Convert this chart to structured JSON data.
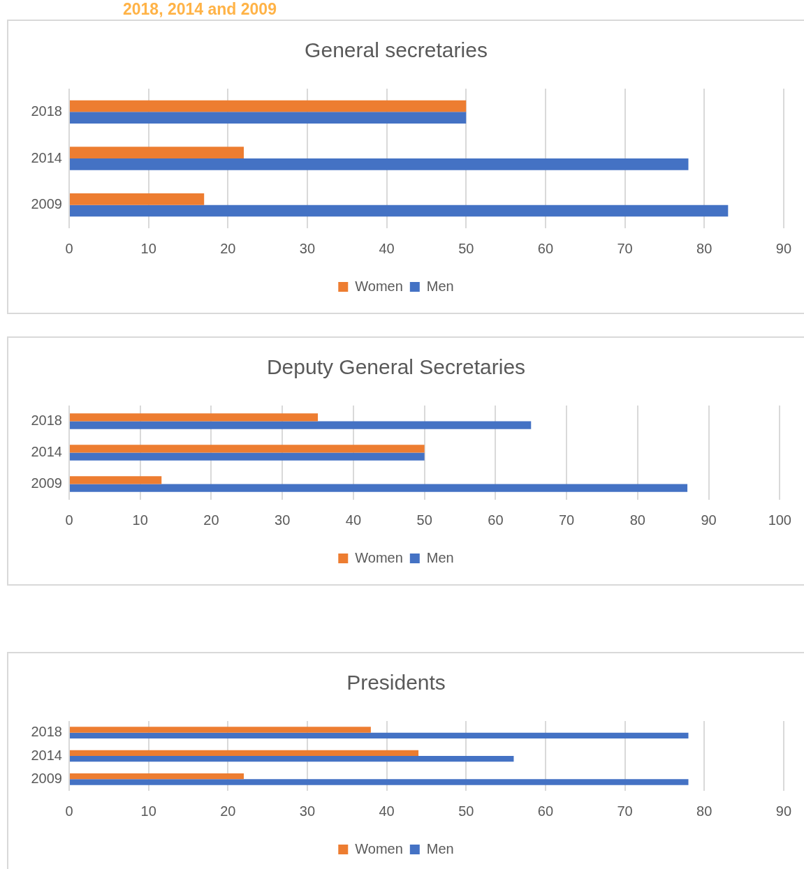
{
  "chart_data": [
    {
      "type": "bar",
      "orientation": "horizontal",
      "title": "General secretaries",
      "annotations": [
        "2018, 2014 and 2009"
      ],
      "categories": [
        "2018",
        "2014",
        "2009"
      ],
      "series": [
        {
          "name": "Women",
          "color": "#ed7d31",
          "values": [
            50,
            22,
            17
          ]
        },
        {
          "name": "Men",
          "color": "#4472c4",
          "values": [
            50,
            78,
            83
          ]
        }
      ],
      "xlim": [
        0,
        90
      ],
      "xticks": [
        0,
        10,
        20,
        30,
        40,
        50,
        60,
        70,
        80,
        90
      ],
      "grid": "x",
      "legend": "bottom"
    },
    {
      "type": "bar",
      "orientation": "horizontal",
      "title": "Deputy General Secretaries",
      "categories": [
        "2018",
        "2014",
        "2009"
      ],
      "series": [
        {
          "name": "Women",
          "color": "#ed7d31",
          "values": [
            35,
            50,
            13
          ]
        },
        {
          "name": "Men",
          "color": "#4472c4",
          "values": [
            65,
            50,
            87
          ]
        }
      ],
      "xlim": [
        0,
        100
      ],
      "xticks": [
        0,
        10,
        20,
        30,
        40,
        50,
        60,
        70,
        80,
        90,
        100
      ],
      "grid": "x",
      "legend": "bottom"
    },
    {
      "type": "bar",
      "orientation": "horizontal",
      "title": "Presidents",
      "categories": [
        "2018",
        "2014",
        "2009"
      ],
      "series": [
        {
          "name": "Women",
          "color": "#ed7d31",
          "values": [
            38,
            44,
            22
          ]
        },
        {
          "name": "Men",
          "color": "#4472c4",
          "values": [
            78,
            56,
            78
          ]
        }
      ],
      "xlim": [
        0,
        90
      ],
      "xticks": [
        0,
        10,
        20,
        30,
        40,
        50,
        60,
        70,
        80,
        90
      ],
      "grid": "x",
      "legend": "bottom"
    }
  ]
}
